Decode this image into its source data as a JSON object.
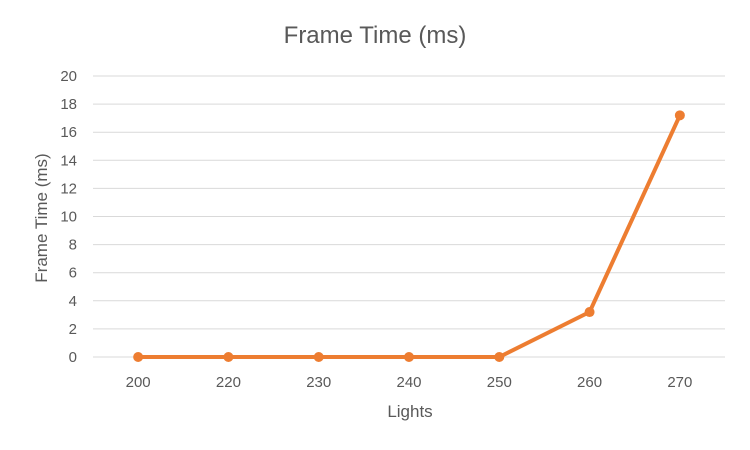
{
  "chart_data": {
    "type": "line",
    "title": "Frame Time (ms)",
    "xlabel": "Lights",
    "ylabel": "Frame Time (ms)",
    "categories": [
      "200",
      "220",
      "230",
      "240",
      "250",
      "260",
      "270"
    ],
    "series": [
      {
        "values": [
          0,
          0,
          0,
          0,
          0,
          3.2,
          17.2
        ],
        "color": "#ED7D31"
      }
    ],
    "ylim": [
      0,
      20
    ],
    "yticks": [
      0,
      2,
      4,
      6,
      8,
      10,
      12,
      14,
      16,
      18,
      20
    ],
    "grid": true,
    "legend": "none"
  }
}
